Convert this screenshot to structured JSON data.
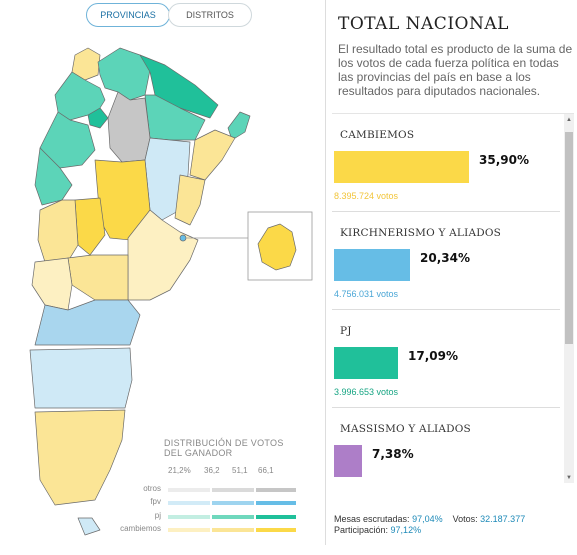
{
  "toggles": {
    "provincias": "PROVINCIAS",
    "distritos": "DISTRITOS"
  },
  "colors": {
    "cambiemos": "#fbd948",
    "cambiemos_light": "#fbe596",
    "fpv": "#66bde6",
    "pj": "#20c09a",
    "massismo": "#ad7ec8",
    "otros": "#c6c6c6"
  },
  "legend": {
    "title": "DISTRIBUCIÓN DE VOTOS DEL GANADOR",
    "ticks": [
      "21,2%",
      "36,2",
      "51,1",
      "66,1"
    ],
    "rows": [
      "otros",
      "fpv",
      "pj",
      "cambiemos"
    ]
  },
  "results": {
    "title": "TOTAL NACIONAL",
    "description": "El resultado total es producto de la suma de los votos de cada fuerza política en todas las provincias del país en base a los resultados para diputados nacionales.",
    "parties": [
      {
        "name": "CAMBIEMOS",
        "pct": "35,90%",
        "share": 35.9,
        "votes": "8.395.724 votos",
        "color": "#fbd948",
        "votes_color": "#f2c53a"
      },
      {
        "name": "KIRCHNERISMO Y ALIADOS",
        "pct": "20,34%",
        "share": 20.34,
        "votes": "4.756.031 votos",
        "color": "#66bde6",
        "votes_color": "#4aa6d6"
      },
      {
        "name": "PJ",
        "pct": "17,09%",
        "share": 17.09,
        "votes": "3.996.653 votos",
        "color": "#20c09a",
        "votes_color": "#17a583"
      },
      {
        "name": "MASSISMO Y ALIADOS",
        "pct": "7,38%",
        "share": 7.38,
        "votes": "",
        "color": "#ad7ec8",
        "votes_color": "#9a68b8"
      }
    ],
    "stats": {
      "mesas_label": "Mesas escrutadas:",
      "mesas_value": "97,04%",
      "votos_label": "Votos:",
      "votos_value": "32.187.377",
      "participacion_label": "Participación:",
      "participacion_value": "97,12%"
    }
  }
}
